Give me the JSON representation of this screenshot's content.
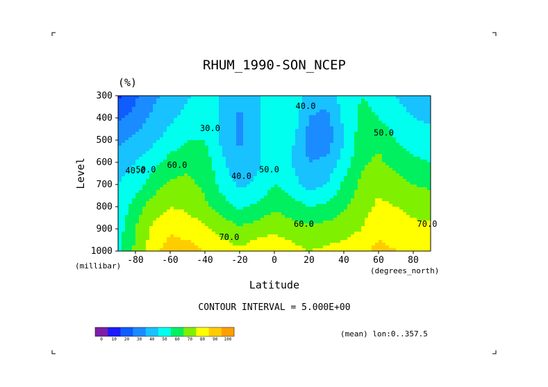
{
  "chart_data": {
    "type": "heatmap",
    "title": "RHUM_1990-SON_NCEP",
    "units": "(%)",
    "xlabel": "Latitude",
    "ylabel": "Level",
    "x_units": "(degrees_north)",
    "y_units": "(millibar)",
    "xlim": [
      -90,
      90
    ],
    "ylim": [
      1000,
      300
    ],
    "x_ticks": [
      {
        "v": -80,
        "t": "-80"
      },
      {
        "v": -60,
        "t": "-60"
      },
      {
        "v": -40,
        "t": "-40"
      },
      {
        "v": -20,
        "t": "-20"
      },
      {
        "v": 0,
        "t": "0"
      },
      {
        "v": 20,
        "t": "20"
      },
      {
        "v": 40,
        "t": "40"
      },
      {
        "v": 60,
        "t": "60"
      },
      {
        "v": 80,
        "t": "80"
      }
    ],
    "y_ticks": [
      {
        "v": 300,
        "t": "300"
      },
      {
        "v": 400,
        "t": "400"
      },
      {
        "v": 500,
        "t": "500"
      },
      {
        "v": 600,
        "t": "600"
      },
      {
        "v": 700,
        "t": "700"
      },
      {
        "v": 800,
        "t": "800"
      },
      {
        "v": 900,
        "t": "900"
      },
      {
        "v": 1000,
        "t": "1000"
      }
    ],
    "contour_interval_text": "CONTOUR INTERVAL = 5.000E+00",
    "mean_text": "(mean) lon:0..357.5",
    "colorbar": {
      "colors": [
        "#7e1fa8",
        "#1b1bff",
        "#0f5cff",
        "#1a8cff",
        "#17c2ff",
        "#00ffee",
        "#00f060",
        "#7ff000",
        "#ffff00",
        "#ffcc00",
        "#ff9f00",
        "#ff6a00",
        "#ff1e00"
      ],
      "bounds": [
        0,
        10,
        20,
        30,
        40,
        50,
        60,
        70,
        80,
        90,
        100
      ],
      "labels": [
        "0",
        "10",
        "20",
        "30",
        "40",
        "50",
        "60",
        "70",
        "80",
        "90",
        "100"
      ]
    },
    "levels_sampled": [
      300,
      400,
      500,
      600,
      700,
      800,
      900,
      1000
    ],
    "lat_sampled": [
      -90,
      -80,
      -70,
      -60,
      -50,
      -40,
      -30,
      -20,
      -10,
      0,
      10,
      20,
      30,
      40,
      50,
      60,
      70,
      80,
      90
    ],
    "values": [
      [
        8,
        18,
        28,
        32,
        38,
        48,
        38,
        32,
        38,
        50,
        48,
        36,
        35,
        45,
        50,
        48,
        40,
        35,
        30
      ],
      [
        18,
        24,
        32,
        38,
        44,
        48,
        38,
        28,
        38,
        50,
        48,
        30,
        26,
        42,
        52,
        50,
        44,
        40,
        38
      ],
      [
        28,
        32,
        38,
        44,
        50,
        50,
        38,
        28,
        38,
        48,
        42,
        26,
        24,
        40,
        55,
        58,
        50,
        46,
        45
      ],
      [
        36,
        40,
        46,
        54,
        58,
        55,
        42,
        32,
        38,
        45,
        40,
        30,
        32,
        44,
        58,
        62,
        56,
        52,
        50
      ],
      [
        40,
        45,
        55,
        62,
        62,
        58,
        46,
        38,
        42,
        50,
        45,
        35,
        40,
        52,
        62,
        68,
        64,
        60,
        58
      ],
      [
        42,
        55,
        65,
        70,
        68,
        62,
        55,
        48,
        52,
        58,
        55,
        50,
        52,
        58,
        66,
        72,
        70,
        68,
        66
      ],
      [
        45,
        60,
        72,
        78,
        76,
        72,
        66,
        62,
        65,
        68,
        64,
        62,
        64,
        66,
        70,
        76,
        74,
        72,
        72
      ],
      [
        48,
        62,
        76,
        85,
        84,
        80,
        75,
        72,
        76,
        78,
        74,
        70,
        72,
        74,
        76,
        84,
        80,
        76,
        74
      ]
    ],
    "contour_labels": [
      {
        "t": "40.0",
        "lat": 18,
        "lev": 360
      },
      {
        "t": "50.0",
        "lat": 63,
        "lev": 480
      },
      {
        "t": "30.0",
        "lat": -37,
        "lev": 460
      },
      {
        "t": "40.0",
        "lat": -80,
        "lev": 650
      },
      {
        "t": "50.0",
        "lat": -74,
        "lev": 645
      },
      {
        "t": "60.0",
        "lat": -56,
        "lev": 625
      },
      {
        "t": "40.0",
        "lat": -19,
        "lev": 675
      },
      {
        "t": "50.0",
        "lat": -3,
        "lev": 645
      },
      {
        "t": "60.0",
        "lat": 17,
        "lev": 890
      },
      {
        "t": "70.0",
        "lat": -26,
        "lev": 950
      },
      {
        "t": "70.0",
        "lat": 88,
        "lev": 890
      }
    ]
  }
}
